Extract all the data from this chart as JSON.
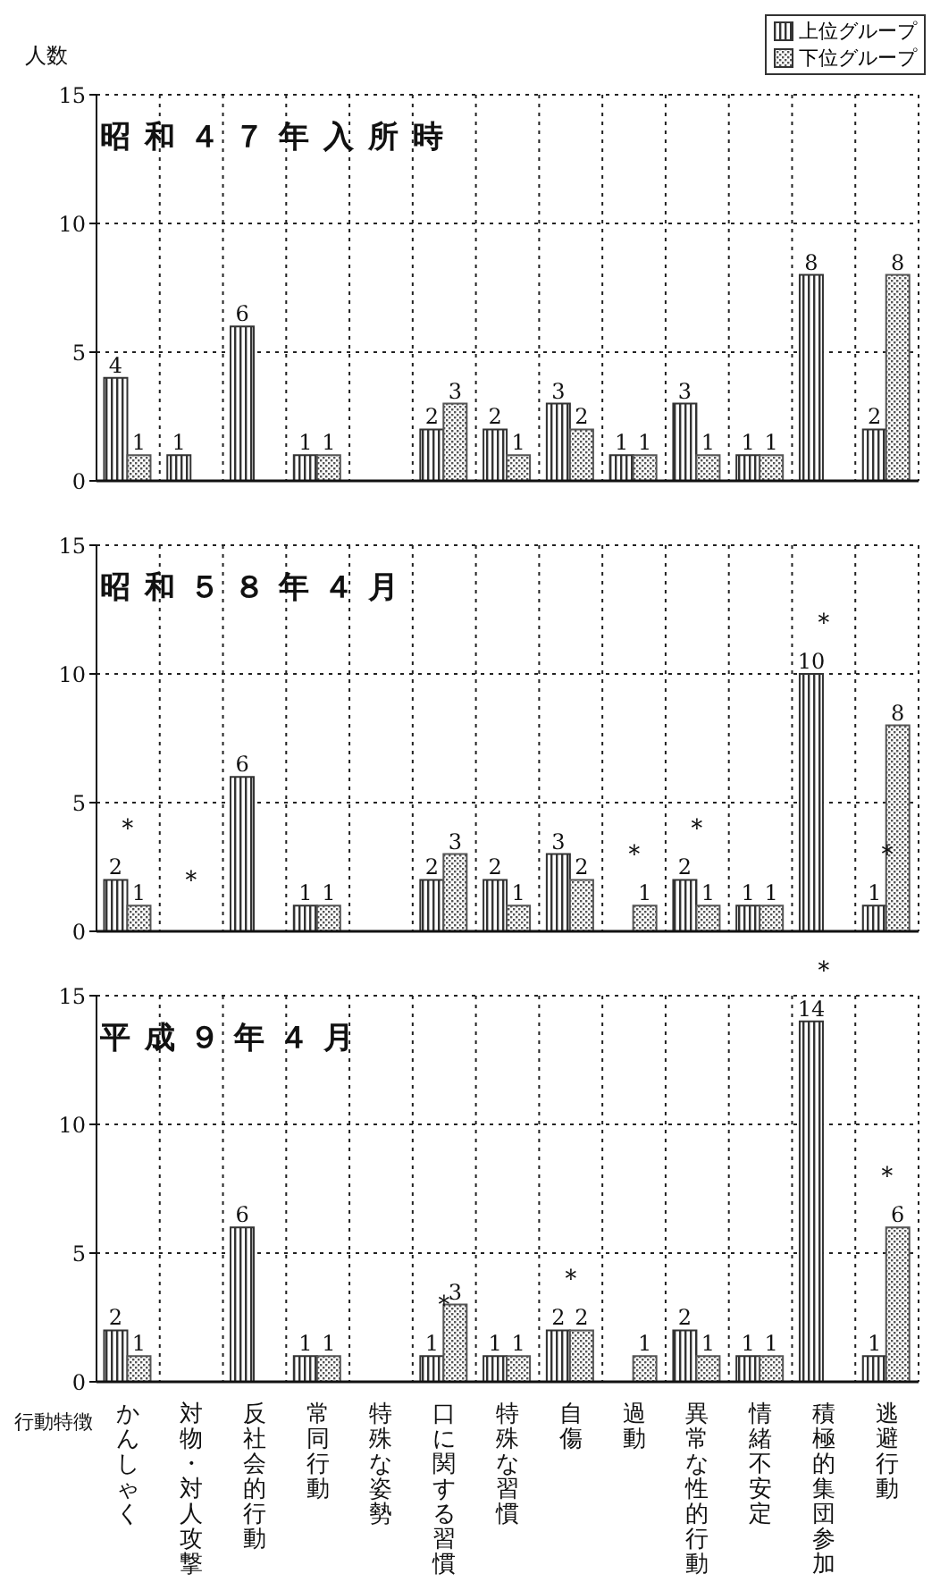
{
  "chart_data": [
    {
      "type": "bar",
      "title": "昭和４７年入所時",
      "ylabel": "人数",
      "categories": [
        "かんしゃく",
        "対物・対人攻撃",
        "反社会的行動",
        "常同行動",
        "特殊な姿勢",
        "口に関する習慣",
        "特殊な習慣",
        "自傷",
        "過動",
        "異常な性的行動",
        "情緒不安定",
        "積極的集団参加",
        "逃避行動"
      ],
      "series": [
        {
          "name": "上位グループ",
          "color": "#333333",
          "values": [
            4,
            1,
            6,
            1,
            0,
            2,
            2,
            3,
            1,
            3,
            1,
            8,
            2
          ],
          "value_labels": [
            "4",
            "1",
            "6",
            "1",
            null,
            "2",
            "2",
            "3",
            "1",
            "3",
            "1",
            "8",
            "2"
          ]
        },
        {
          "name": "下位グループ",
          "color": "#555555",
          "values": [
            1,
            0,
            0,
            1,
            0,
            3,
            1,
            2,
            1,
            1,
            1,
            0,
            8
          ],
          "value_labels": [
            "1",
            null,
            null,
            "1",
            null,
            "3",
            "1",
            "2",
            "1",
            "1",
            "1",
            null,
            "8"
          ]
        }
      ],
      "ylim": [
        0,
        15
      ],
      "yticks": [
        0,
        5,
        10,
        15
      ],
      "grid": true,
      "legend": "top right",
      "tick_labels": "y"
    },
    {
      "type": "bar",
      "title": "昭和５８年４月",
      "categories": [
        "かんしゃく",
        "対物・対人攻撃",
        "反社会的行動",
        "常同行動",
        "特殊な姿勢",
        "口に関する習慣",
        "特殊な習慣",
        "自傷",
        "過動",
        "異常な性的行動",
        "情緒不安定",
        "積極的集団参加",
        "逃避行動"
      ],
      "series": [
        {
          "color": "#333333",
          "values": [
            2,
            0,
            6,
            1,
            0,
            2,
            2,
            3,
            0,
            2,
            1,
            10,
            1
          ],
          "value_labels": [
            "2",
            null,
            "6",
            "1",
            null,
            "2",
            "2",
            "3",
            null,
            "2",
            "1",
            "10",
            "1"
          ]
        },
        {
          "color": "#555555",
          "values": [
            1,
            0,
            0,
            1,
            0,
            3,
            1,
            2,
            1,
            1,
            1,
            0,
            8
          ],
          "value_labels": [
            "1",
            null,
            null,
            "1",
            null,
            "3",
            "1",
            "2",
            "1",
            "1",
            "1",
            null,
            "8"
          ]
        }
      ],
      "annotations": [
        {
          "text": "＊",
          "x": "かんしゃく",
          "y": 2
        },
        {
          "text": "＊",
          "x": "対物・対人攻撃",
          "y": 0
        },
        {
          "text": "＊",
          "x": "過動",
          "y": 1
        },
        {
          "text": "＊",
          "x": "異常な性的行動",
          "y": 2
        },
        {
          "text": "＊",
          "x": "積極的集団参加",
          "y": 10
        },
        {
          "text": "＊",
          "x": "逃避行動",
          "y": 1
        }
      ],
      "ylim": [
        0,
        15
      ],
      "yticks": [
        0,
        5,
        10,
        15
      ],
      "grid": true,
      "tick_labels": "y"
    },
    {
      "type": "bar",
      "title": "平成９年４月",
      "xlabel": "行動特徴",
      "categories": [
        "かんしゃく",
        "対物・対人攻撃",
        "反社会的行動",
        "常同行動",
        "特殊な姿勢",
        "口に関する習慣",
        "特殊な習慣",
        "自傷",
        "過動",
        "異常な性的行動",
        "情緒不安定",
        "積極的集団参加",
        "逃避行動"
      ],
      "series": [
        {
          "color": "#333333",
          "values": [
            2,
            0,
            6,
            1,
            0,
            1,
            1,
            2,
            0,
            2,
            1,
            14,
            1
          ],
          "value_labels": [
            "2",
            null,
            "6",
            "1",
            null,
            "1",
            "1",
            "2",
            null,
            "2",
            "1",
            "14",
            "1"
          ]
        },
        {
          "color": "#555555",
          "values": [
            1,
            0,
            0,
            1,
            0,
            3,
            1,
            2,
            1,
            1,
            1,
            0,
            6
          ],
          "value_labels": [
            "1",
            null,
            null,
            "1",
            null,
            "3",
            "1",
            "2",
            "1",
            "1",
            "1",
            null,
            "6"
          ]
        }
      ],
      "annotations": [
        {
          "text": "＊",
          "x": "口に関する習慣",
          "y": 1
        },
        {
          "text": "＊",
          "x": "自傷",
          "y": 2
        },
        {
          "text": "＊",
          "x": "積極的集団参加",
          "y": 14
        },
        {
          "text": "＊",
          "x": "逃避行動",
          "y": 6
        }
      ],
      "ylim": [
        0,
        15
      ],
      "yticks": [
        0,
        5,
        10,
        15
      ],
      "grid": true
    }
  ]
}
